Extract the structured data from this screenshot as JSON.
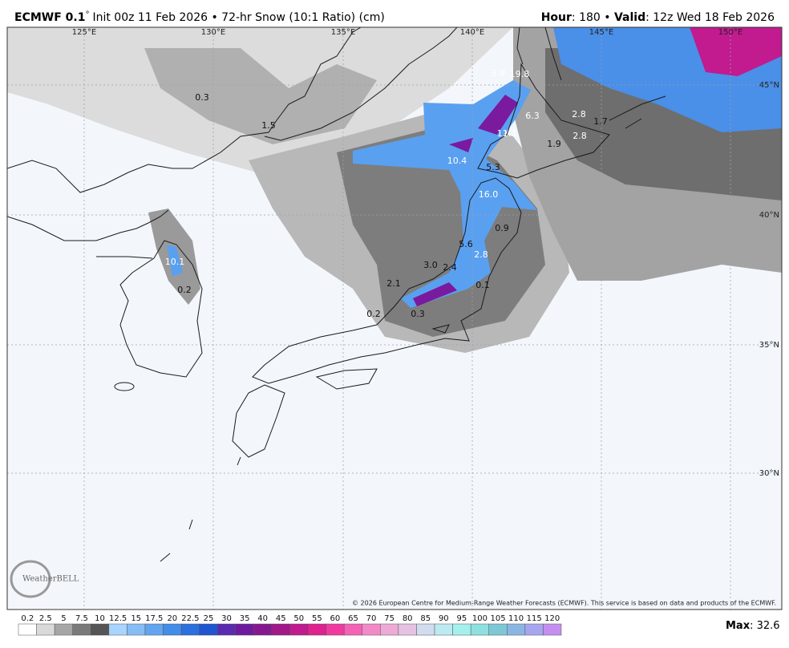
{
  "header": {
    "title": "ECMWF 0.1",
    "degree": "°",
    "subtitle": "Init 00z 11 Feb 2026 • 72-hr Snow (10:1 Ratio) (cm)",
    "hour_label": "Hour",
    "hour": ": 180 • ",
    "valid_label": "Valid",
    "valid": ": 12z Wed 18 Feb 2026"
  },
  "map": {
    "longitudes": [
      "125°E",
      "130°E",
      "135°E",
      "140°E",
      "145°E",
      "150°E"
    ],
    "latitudes": [
      "45°N",
      "40°N",
      "35°N",
      "30°N"
    ],
    "point_labels": [
      "0.3",
      "1.5",
      "3.9",
      "19.8",
      "6.3",
      "11.3",
      "2.8",
      "1.7",
      "2.8",
      "1.9",
      "10.4",
      "5.3",
      "16.0",
      "0.9",
      "5.6",
      "2.8",
      "10.1",
      "3.0",
      "2.4",
      "2.1",
      "0.1",
      "0.2",
      "0.2",
      "0.3"
    ],
    "copyright": "© 2026 European Centre for Medium-Range Weather Forecasts (ECMWF). This service is based on data and products of the ECMWF.",
    "logo": "WeatherBELL"
  },
  "colorbar": {
    "labels": [
      "0.2",
      "2.5",
      "5",
      "7.5",
      "10",
      "12.5",
      "15",
      "17.5",
      "20",
      "22.5",
      "25",
      "30",
      "35",
      "40",
      "45",
      "50",
      "55",
      "60",
      "65",
      "70",
      "75",
      "80",
      "85",
      "90",
      "95",
      "100",
      "105",
      "110",
      "115",
      "120"
    ],
    "colors": [
      "#ffffff",
      "#d9d9d9",
      "#a6a6a6",
      "#7a7a7a",
      "#555555",
      "#a8d4ff",
      "#86bdf6",
      "#63a4f0",
      "#438ce8",
      "#2a70de",
      "#1f55cf",
      "#5a2ab0",
      "#6e1a9e",
      "#86188f",
      "#a0188a",
      "#c01a8f",
      "#de228f",
      "#f03aa0",
      "#f462b5",
      "#f28ac8",
      "#eeaad6",
      "#e6c2e2",
      "#d2dcf0",
      "#bdeaf2",
      "#a4f0ee",
      "#8ee0e0",
      "#7ec8d6",
      "#8cb6e2",
      "#a6a6f0",
      "#c48ef0"
    ],
    "max_label": "Max",
    "max": ": 32.6"
  }
}
